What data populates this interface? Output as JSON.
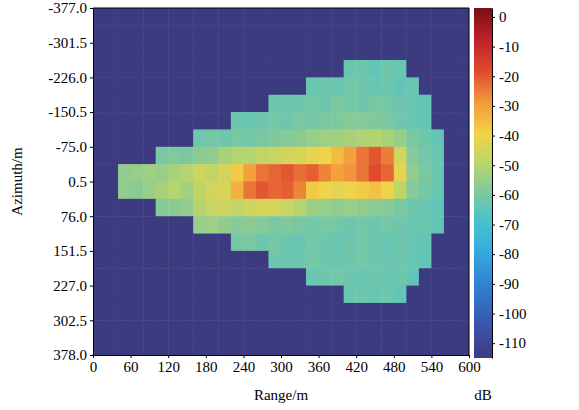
{
  "chart_data": {
    "type": "heatmap",
    "x_label": "Range/m",
    "y_label": "Azimuth/m",
    "xlim": [
      0,
      600
    ],
    "xticks": [
      0,
      60,
      120,
      180,
      240,
      300,
      360,
      420,
      480,
      540,
      600
    ],
    "ylim": [
      -377,
      378
    ],
    "yticks": [
      {
        "value": -377,
        "label": "-377.0"
      },
      -301.5,
      {
        "value": -226,
        "label": "-226.0"
      },
      -150.5,
      {
        "value": -75,
        "label": "-75.0"
      },
      0.5,
      {
        "value": 76,
        "label": "76.0"
      },
      151.5,
      {
        "value": 227,
        "label": "227.0"
      },
      302.5,
      {
        "value": 378,
        "label": "378.0"
      }
    ],
    "x": [
      10,
      30,
      50,
      70,
      90,
      110,
      130,
      150,
      170,
      190,
      210,
      230,
      250,
      270,
      290,
      310,
      330,
      350,
      370,
      390,
      410,
      430,
      450,
      470,
      490,
      510,
      530,
      550,
      570,
      590
    ],
    "y": [
      -358.125,
      -320.375,
      -282.625,
      -244.875,
      -207.125,
      -169.375,
      -131.625,
      -93.875,
      -56.125,
      -18.375,
      19.375,
      57.125,
      94.875,
      132.625,
      170.375,
      208.125,
      245.875,
      283.625,
      321.375,
      359.125
    ],
    "z": [
      [
        -115,
        -115,
        -115,
        -115,
        -115,
        -115,
        -115,
        -115,
        -115,
        -115,
        -115,
        -115,
        -115,
        -115,
        -115,
        -115,
        -115,
        -115,
        -115,
        -115,
        -115,
        -115,
        -115,
        -115,
        -115,
        -115,
        -115,
        -115,
        -115,
        -115
      ],
      [
        -115,
        -115,
        -115,
        -115,
        -115,
        -115,
        -115,
        -115,
        -115,
        -115,
        -115,
        -115,
        -115,
        -115,
        -115,
        -115,
        -115,
        -115,
        -115,
        -115,
        -115,
        -115,
        -115,
        -115,
        -115,
        -115,
        -115,
        -115,
        -115,
        -115
      ],
      [
        -115,
        -115,
        -115,
        -115,
        -115,
        -115,
        -115,
        -115,
        -115,
        -115,
        -115,
        -115,
        -115,
        -115,
        -115,
        -115,
        -115,
        -115,
        -115,
        -115,
        -115,
        -115,
        -115,
        -115,
        -115,
        -115,
        -115,
        -115,
        -115,
        -115
      ],
      [
        -115,
        -115,
        -115,
        -115,
        -115,
        -115,
        -115,
        -115,
        -115,
        -115,
        -115,
        -115,
        -115,
        -115,
        -115,
        -115,
        -115,
        -115,
        -115,
        -115,
        -63,
        -62,
        -64,
        -62,
        -63,
        -115,
        -115,
        -115,
        -115,
        -115
      ],
      [
        -115,
        -115,
        -115,
        -115,
        -115,
        -115,
        -115,
        -115,
        -115,
        -115,
        -115,
        -115,
        -115,
        -115,
        -115,
        -115,
        -115,
        -63,
        -62,
        -63,
        -61,
        -62,
        -63,
        -62,
        -64,
        -63,
        -115,
        -115,
        -115,
        -115
      ],
      [
        -115,
        -115,
        -115,
        -115,
        -115,
        -115,
        -115,
        -115,
        -115,
        -115,
        -115,
        -115,
        -115,
        -115,
        -62,
        -63,
        -62,
        -61,
        -62,
        -60,
        -61,
        -62,
        -60,
        -61,
        -62,
        -63,
        -64,
        -115,
        -115,
        -115
      ],
      [
        -115,
        -115,
        -115,
        -115,
        -115,
        -115,
        -115,
        -115,
        -115,
        -115,
        -115,
        -62,
        -63,
        -62,
        -61,
        -62,
        -60,
        -61,
        -60,
        -59,
        -58,
        -58,
        -59,
        -60,
        -62,
        -63,
        -64,
        -115,
        -115,
        -115
      ],
      [
        -115,
        -115,
        -115,
        -115,
        -115,
        -115,
        -115,
        -115,
        -62,
        -61,
        -62,
        -60,
        -61,
        -60,
        -59,
        -58,
        -57,
        -55,
        -54,
        -53,
        -52,
        -51,
        -50,
        -52,
        -55,
        -60,
        -62,
        -64,
        -115,
        -115
      ],
      [
        -115,
        -115,
        -115,
        -115,
        -115,
        -60,
        -59,
        -60,
        -57,
        -56,
        -52,
        -50,
        -50,
        -48,
        -47,
        -45,
        -44,
        -42,
        -40,
        -35,
        -30,
        -24,
        -20,
        -25,
        -45,
        -58,
        -61,
        -63,
        -115,
        -115
      ],
      [
        -115,
        -115,
        -56,
        -55,
        -54,
        -55,
        -52,
        -50,
        -46,
        -48,
        -45,
        -38,
        -30,
        -24,
        -22,
        -20,
        -23,
        -21,
        -26,
        -30,
        -28,
        -24,
        -18,
        -22,
        -42,
        -56,
        -60,
        -63,
        -115,
        -115
      ],
      [
        -115,
        -115,
        -56,
        -57,
        -55,
        -52,
        -50,
        -53,
        -48,
        -45,
        -44,
        -33,
        -24,
        -20,
        -22,
        -21,
        -26,
        -38,
        -40,
        -42,
        -40,
        -38,
        -36,
        -40,
        -48,
        -58,
        -61,
        -63,
        -115,
        -115
      ],
      [
        -115,
        -115,
        -115,
        -115,
        -115,
        -58,
        -57,
        -56,
        -50,
        -47,
        -46,
        -48,
        -46,
        -44,
        -45,
        -47,
        -50,
        -54,
        -55,
        -56,
        -55,
        -56,
        -57,
        -58,
        -60,
        -62,
        -63,
        -64,
        -115,
        -115
      ],
      [
        -115,
        -115,
        -115,
        -115,
        -115,
        -115,
        -115,
        -115,
        -55,
        -54,
        -56,
        -58,
        -57,
        -58,
        -60,
        -59,
        -60,
        -61,
        -60,
        -61,
        -62,
        -61,
        -62,
        -61,
        -62,
        -63,
        -63,
        -64,
        -115,
        -115
      ],
      [
        -115,
        -115,
        -115,
        -115,
        -115,
        -115,
        -115,
        -115,
        -115,
        -115,
        -115,
        -61,
        -60,
        -62,
        -61,
        -62,
        -63,
        -61,
        -62,
        -63,
        -62,
        -61,
        -62,
        -63,
        -62,
        -63,
        -64,
        -115,
        -115,
        -115
      ],
      [
        -115,
        -115,
        -115,
        -115,
        -115,
        -115,
        -115,
        -115,
        -115,
        -115,
        -115,
        -115,
        -115,
        -115,
        -62,
        -63,
        -62,
        -61,
        -62,
        -63,
        -62,
        -61,
        -62,
        -63,
        -62,
        -63,
        -64,
        -115,
        -115,
        -115
      ],
      [
        -115,
        -115,
        -115,
        -115,
        -115,
        -115,
        -115,
        -115,
        -115,
        -115,
        -115,
        -115,
        -115,
        -115,
        -115,
        -115,
        -115,
        -63,
        -62,
        -61,
        -62,
        -63,
        -62,
        -63,
        -62,
        -64,
        -115,
        -115,
        -115,
        -115
      ],
      [
        -115,
        -115,
        -115,
        -115,
        -115,
        -115,
        -115,
        -115,
        -115,
        -115,
        -115,
        -115,
        -115,
        -115,
        -115,
        -115,
        -115,
        -115,
        -115,
        -115,
        -63,
        -62,
        -63,
        -62,
        -64,
        -115,
        -115,
        -115,
        -115,
        -115
      ],
      [
        -115,
        -115,
        -115,
        -115,
        -115,
        -115,
        -115,
        -115,
        -115,
        -115,
        -115,
        -115,
        -115,
        -115,
        -115,
        -115,
        -115,
        -115,
        -115,
        -115,
        -115,
        -115,
        -115,
        -115,
        -115,
        -115,
        -115,
        -115,
        -115,
        -115
      ],
      [
        -115,
        -115,
        -115,
        -115,
        -115,
        -115,
        -115,
        -115,
        -115,
        -115,
        -115,
        -115,
        -115,
        -115,
        -115,
        -115,
        -115,
        -115,
        -115,
        -115,
        -115,
        -115,
        -115,
        -115,
        -115,
        -115,
        -115,
        -115,
        -115,
        -115
      ],
      [
        -115,
        -115,
        -115,
        -115,
        -115,
        -115,
        -115,
        -115,
        -115,
        -115,
        -115,
        -115,
        -115,
        -115,
        -115,
        -115,
        -115,
        -115,
        -115,
        -115,
        -115,
        -115,
        -115,
        -115,
        -115,
        -115,
        -115,
        -115,
        -115,
        -115
      ]
    ],
    "colorbar": {
      "range": [
        -115,
        3
      ],
      "ticks": [
        0,
        -10,
        -20,
        -30,
        -40,
        -50,
        -60,
        -70,
        -80,
        -90,
        -100,
        -110
      ],
      "label": "dB"
    }
  }
}
